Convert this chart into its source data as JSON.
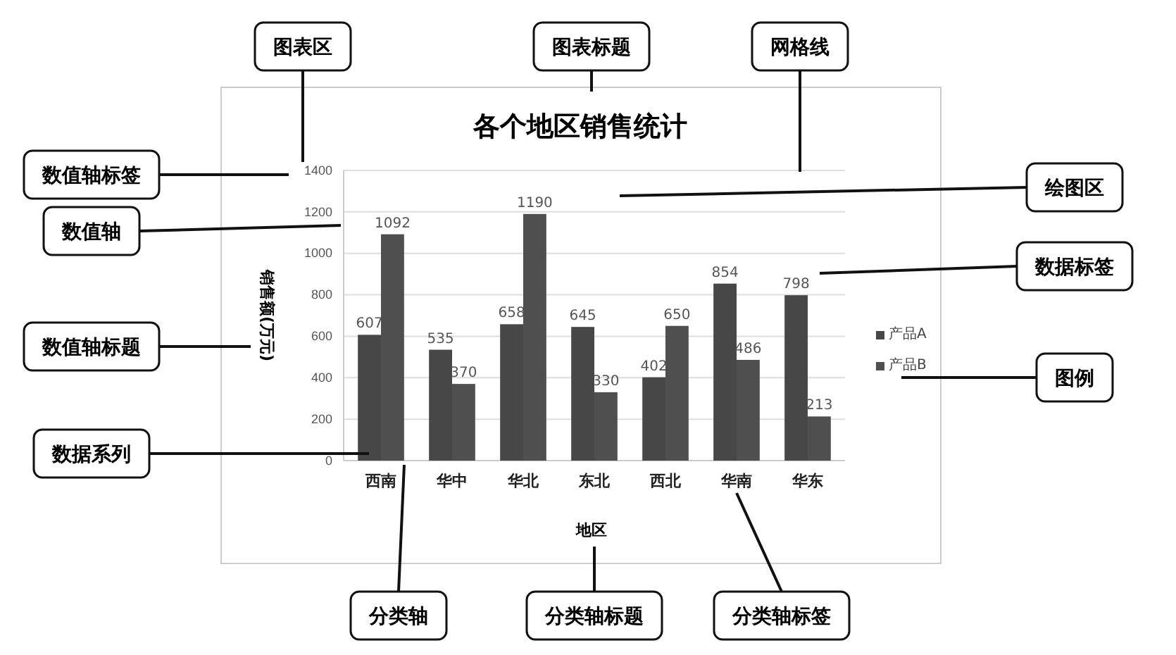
{
  "chart_data": {
    "type": "bar",
    "title": "各个地区销售统计",
    "xlabel": "地区",
    "ylabel": "销售额(万元)",
    "categories": [
      "西南",
      "华中",
      "华北",
      "东北",
      "西北",
      "华南",
      "华东"
    ],
    "series": [
      {
        "name": "产品A",
        "color": "#474747",
        "values": [
          607,
          535,
          658,
          645,
          402,
          854,
          798
        ]
      },
      {
        "name": "产品B",
        "color": "#4f4f4f",
        "values": [
          1092,
          370,
          1190,
          330,
          650,
          486,
          213
        ]
      }
    ],
    "ylim": [
      0,
      1400
    ],
    "yticks": [
      0,
      200,
      400,
      600,
      800,
      1000,
      1200,
      1400
    ],
    "grid": "y",
    "legend": "right",
    "data_labels": true,
    "annotations": [
      "图表区",
      "图表标题",
      "网格线",
      "数值轴标签",
      "绘图区",
      "数值轴",
      "数据标签",
      "数值轴标题",
      "图例",
      "数据系列",
      "分类轴",
      "分类轴标题",
      "分类轴标签"
    ]
  }
}
